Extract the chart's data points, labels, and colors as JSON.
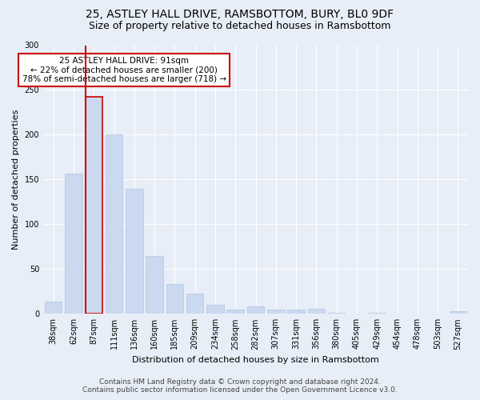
{
  "title": "25, ASTLEY HALL DRIVE, RAMSBOTTOM, BURY, BL0 9DF",
  "subtitle": "Size of property relative to detached houses in Ramsbottom",
  "xlabel": "Distribution of detached houses by size in Ramsbottom",
  "ylabel": "Number of detached properties",
  "footnote1": "Contains HM Land Registry data © Crown copyright and database right 2024.",
  "footnote2": "Contains public sector information licensed under the Open Government Licence v3.0.",
  "bar_labels": [
    "38sqm",
    "62sqm",
    "87sqm",
    "111sqm",
    "136sqm",
    "160sqm",
    "185sqm",
    "209sqm",
    "234sqm",
    "258sqm",
    "282sqm",
    "307sqm",
    "331sqm",
    "356sqm",
    "380sqm",
    "405sqm",
    "429sqm",
    "454sqm",
    "478sqm",
    "503sqm",
    "527sqm"
  ],
  "bar_values": [
    14,
    157,
    242,
    200,
    140,
    65,
    33,
    23,
    10,
    5,
    8,
    5,
    5,
    6,
    1,
    0,
    1,
    0,
    0,
    0,
    3
  ],
  "bar_color": "#cad9ef",
  "bar_edge_color": "#b0c4de",
  "highlight_bar_index": 2,
  "highlight_edge_color": "#cc0000",
  "annotation_text": "25 ASTLEY HALL DRIVE: 91sqm\n← 22% of detached houses are smaller (200)\n78% of semi-detached houses are larger (718) →",
  "annotation_box_color": "#ffffff",
  "annotation_box_edge_color": "#cc0000",
  "ylim": [
    0,
    300
  ],
  "yticks": [
    0,
    50,
    100,
    150,
    200,
    250,
    300
  ],
  "bg_color": "#e8eef8",
  "plot_bg_color": "#e8eef8",
  "grid_color": "#ffffff",
  "title_fontsize": 10,
  "subtitle_fontsize": 9,
  "label_fontsize": 8,
  "tick_fontsize": 7,
  "annotation_fontsize": 7.5,
  "footnote_fontsize": 6.5
}
